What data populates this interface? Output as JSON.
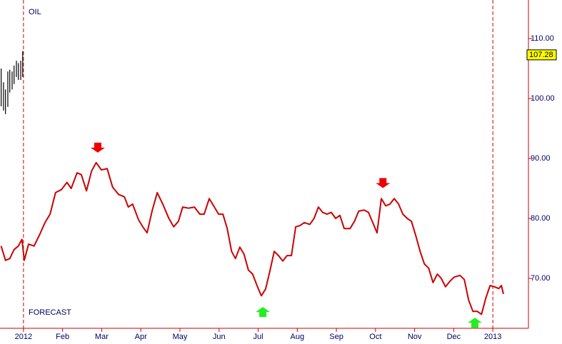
{
  "chart_data": {
    "type": "line",
    "xlim": [
      -0.6,
      12.91
    ],
    "ylim": [
      61.67,
      116.43
    ],
    "xticks": [
      {
        "value": 0,
        "label": "2012"
      },
      {
        "value": 1,
        "label": "Feb"
      },
      {
        "value": 2,
        "label": "Mar"
      },
      {
        "value": 3,
        "label": "Apr"
      },
      {
        "value": 4,
        "label": "May"
      },
      {
        "value": 5,
        "label": "Jun"
      },
      {
        "value": 6,
        "label": "Jul"
      },
      {
        "value": 7,
        "label": "Aug"
      },
      {
        "value": 8,
        "label": "Sep"
      },
      {
        "value": 9,
        "label": "Oct"
      },
      {
        "value": 10,
        "label": "Nov"
      },
      {
        "value": 11,
        "label": "Dec"
      },
      {
        "value": 12,
        "label": "2013"
      }
    ],
    "yticks": [
      {
        "value": 70,
        "label": "70.00"
      },
      {
        "value": 80,
        "label": "80.00"
      },
      {
        "value": 90,
        "label": "90.00"
      },
      {
        "value": 100,
        "label": "100.00"
      },
      {
        "value": 110,
        "label": "110.00"
      }
    ],
    "dashed_lines": [
      0,
      12
    ],
    "axis_color": "#cc0000",
    "series": [
      {
        "name": "OIL",
        "color": "#000000",
        "x": [
          -0.57,
          -0.51,
          -0.46,
          -0.4,
          -0.35,
          -0.29,
          -0.24,
          -0.18,
          -0.13,
          -0.07,
          -0.02
        ],
        "high": [
          105.0,
          102.7,
          101.5,
          104.5,
          104.8,
          104.5,
          105.5,
          106.3,
          105.9,
          106.3,
          107.9
        ],
        "low": [
          98.7,
          98.0,
          97.4,
          98.6,
          101.0,
          101.5,
          102.4,
          103.6,
          103.1,
          103.1,
          103.6
        ],
        "last_value": 107.28,
        "last_color": "#ffff00"
      },
      {
        "name": "FORECAST",
        "color": "#cc0000",
        "x": [
          -0.57,
          -0.46,
          -0.35,
          -0.24,
          -0.13,
          -0.04,
          0.02,
          0.13,
          0.27,
          0.42,
          0.55,
          0.68,
          0.82,
          0.97,
          1.11,
          1.22,
          1.37,
          1.48,
          1.61,
          1.74,
          1.86,
          1.99,
          2.14,
          2.28,
          2.43,
          2.58,
          2.68,
          2.79,
          2.94,
          3.05,
          3.16,
          3.29,
          3.42,
          3.56,
          3.71,
          3.84,
          3.96,
          4.07,
          4.22,
          4.37,
          4.51,
          4.62,
          4.75,
          4.88,
          4.99,
          5.1,
          5.21,
          5.32,
          5.42,
          5.53,
          5.64,
          5.75,
          5.86,
          5.97,
          6.08,
          6.19,
          6.3,
          6.41,
          6.52,
          6.63,
          6.74,
          6.85,
          6.96,
          7.07,
          7.18,
          7.32,
          7.43,
          7.54,
          7.65,
          7.76,
          7.87,
          7.98,
          8.09,
          8.2,
          8.35,
          8.46,
          8.57,
          8.71,
          8.82,
          8.93,
          9.04,
          9.15,
          9.26,
          9.37,
          9.48,
          9.59,
          9.7,
          9.81,
          9.92,
          10.03,
          10.14,
          10.25,
          10.36,
          10.47,
          10.58,
          10.68,
          10.79,
          10.9,
          11.01,
          11.16,
          11.27,
          11.38,
          11.49,
          11.6,
          11.71,
          11.82,
          11.93,
          12.04,
          12.15,
          12.22,
          12.27
        ],
        "values": [
          75.4,
          73.0,
          73.3,
          74.8,
          75.4,
          76.5,
          73.0,
          75.7,
          75.4,
          77.4,
          79.3,
          80.7,
          84.3,
          84.8,
          86.0,
          85.0,
          87.6,
          87.3,
          84.6,
          87.9,
          89.3,
          88.1,
          88.3,
          85.2,
          84.0,
          83.6,
          81.9,
          82.4,
          79.8,
          78.6,
          77.6,
          81.3,
          84.3,
          82.4,
          80.1,
          78.6,
          79.5,
          81.9,
          81.7,
          81.9,
          80.7,
          80.7,
          83.3,
          81.9,
          80.7,
          80.7,
          78.3,
          74.5,
          73.3,
          75.2,
          74.0,
          71.4,
          70.7,
          68.8,
          67.1,
          68.2,
          71.2,
          74.5,
          73.8,
          72.9,
          73.8,
          73.8,
          78.6,
          78.8,
          79.3,
          79.0,
          80.0,
          81.9,
          81.0,
          80.7,
          81.0,
          80.0,
          80.5,
          78.3,
          78.3,
          79.5,
          81.2,
          81.4,
          81.0,
          79.3,
          77.6,
          83.3,
          82.1,
          82.4,
          83.3,
          82.4,
          80.7,
          80.0,
          79.5,
          77.1,
          74.5,
          72.4,
          71.7,
          69.3,
          70.7,
          70.0,
          68.6,
          69.5,
          70.2,
          70.5,
          69.8,
          66.4,
          64.5,
          64.5,
          64.0,
          66.7,
          68.8,
          68.6,
          68.3,
          68.8,
          67.4
        ]
      }
    ],
    "signals": [
      {
        "x": 1.9,
        "y": 91.8,
        "direction": "down",
        "color": "#ee0000"
      },
      {
        "x": 9.19,
        "y": 85.9,
        "direction": "down",
        "color": "#ee0000"
      },
      {
        "x": 6.12,
        "y": 64.4,
        "direction": "up",
        "color": "#22ee22"
      },
      {
        "x": 11.54,
        "y": 62.6,
        "direction": "up",
        "color": "#22ee22"
      }
    ]
  }
}
